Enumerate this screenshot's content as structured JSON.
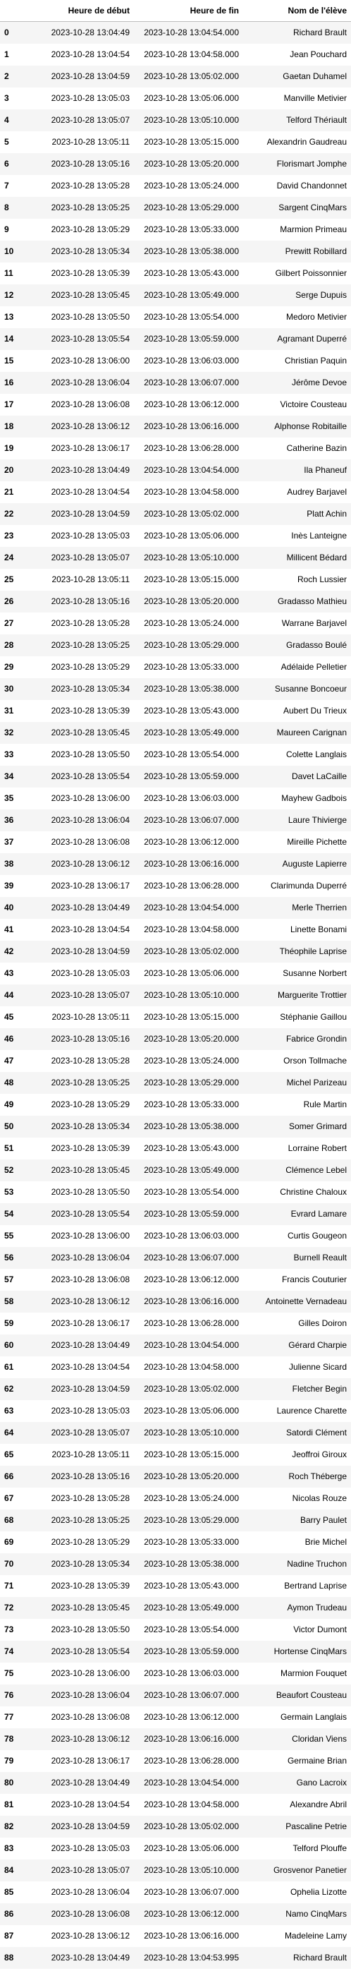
{
  "table": {
    "index_header": "",
    "columns": [
      "Heure de début",
      "Heure de fin",
      "Nom de l'élève"
    ],
    "rows": [
      [
        "0",
        "2023-10-28 13:04:49",
        "2023-10-28 13:04:54.000",
        "Richard Brault"
      ],
      [
        "1",
        "2023-10-28 13:04:54",
        "2023-10-28 13:04:58.000",
        "Jean Pouchard"
      ],
      [
        "2",
        "2023-10-28 13:04:59",
        "2023-10-28 13:05:02.000",
        "Gaetan Duhamel"
      ],
      [
        "3",
        "2023-10-28 13:05:03",
        "2023-10-28 13:05:06.000",
        "Manville Metivier"
      ],
      [
        "4",
        "2023-10-28 13:05:07",
        "2023-10-28 13:05:10.000",
        "Telford Thériault"
      ],
      [
        "5",
        "2023-10-28 13:05:11",
        "2023-10-28 13:05:15.000",
        "Alexandrin Gaudreau"
      ],
      [
        "6",
        "2023-10-28 13:05:16",
        "2023-10-28 13:05:20.000",
        "Florismart Jomphe"
      ],
      [
        "7",
        "2023-10-28 13:05:28",
        "2023-10-28 13:05:24.000",
        "David Chandonnet"
      ],
      [
        "8",
        "2023-10-28 13:05:25",
        "2023-10-28 13:05:29.000",
        "Sargent CinqMars"
      ],
      [
        "9",
        "2023-10-28 13:05:29",
        "2023-10-28 13:05:33.000",
        "Marmion Primeau"
      ],
      [
        "10",
        "2023-10-28 13:05:34",
        "2023-10-28 13:05:38.000",
        "Prewitt Robillard"
      ],
      [
        "11",
        "2023-10-28 13:05:39",
        "2023-10-28 13:05:43.000",
        "Gilbert Poissonnier"
      ],
      [
        "12",
        "2023-10-28 13:05:45",
        "2023-10-28 13:05:49.000",
        "Serge Dupuis"
      ],
      [
        "13",
        "2023-10-28 13:05:50",
        "2023-10-28 13:05:54.000",
        "Medoro Metivier"
      ],
      [
        "14",
        "2023-10-28 13:05:54",
        "2023-10-28 13:05:59.000",
        "Agramant Duperré"
      ],
      [
        "15",
        "2023-10-28 13:06:00",
        "2023-10-28 13:06:03.000",
        "Christian Paquin"
      ],
      [
        "16",
        "2023-10-28 13:06:04",
        "2023-10-28 13:06:07.000",
        "Jérôme Devoe"
      ],
      [
        "17",
        "2023-10-28 13:06:08",
        "2023-10-28 13:06:12.000",
        "Victoire Cousteau"
      ],
      [
        "18",
        "2023-10-28 13:06:12",
        "2023-10-28 13:06:16.000",
        "Alphonse Robitaille"
      ],
      [
        "19",
        "2023-10-28 13:06:17",
        "2023-10-28 13:06:28.000",
        "Catherine Bazin"
      ],
      [
        "20",
        "2023-10-28 13:04:49",
        "2023-10-28 13:04:54.000",
        "Ila Phaneuf"
      ],
      [
        "21",
        "2023-10-28 13:04:54",
        "2023-10-28 13:04:58.000",
        "Audrey Barjavel"
      ],
      [
        "22",
        "2023-10-28 13:04:59",
        "2023-10-28 13:05:02.000",
        "Platt Achin"
      ],
      [
        "23",
        "2023-10-28 13:05:03",
        "2023-10-28 13:05:06.000",
        "Inès Lanteigne"
      ],
      [
        "24",
        "2023-10-28 13:05:07",
        "2023-10-28 13:05:10.000",
        "Millicent Bédard"
      ],
      [
        "25",
        "2023-10-28 13:05:11",
        "2023-10-28 13:05:15.000",
        "Roch Lussier"
      ],
      [
        "26",
        "2023-10-28 13:05:16",
        "2023-10-28 13:05:20.000",
        "Gradasso Mathieu"
      ],
      [
        "27",
        "2023-10-28 13:05:28",
        "2023-10-28 13:05:24.000",
        "Warrane Barjavel"
      ],
      [
        "28",
        "2023-10-28 13:05:25",
        "2023-10-28 13:05:29.000",
        "Gradasso Boulé"
      ],
      [
        "29",
        "2023-10-28 13:05:29",
        "2023-10-28 13:05:33.000",
        "Adélaide Pelletier"
      ],
      [
        "30",
        "2023-10-28 13:05:34",
        "2023-10-28 13:05:38.000",
        "Susanne Boncoeur"
      ],
      [
        "31",
        "2023-10-28 13:05:39",
        "2023-10-28 13:05:43.000",
        "Aubert Du Trieux"
      ],
      [
        "32",
        "2023-10-28 13:05:45",
        "2023-10-28 13:05:49.000",
        "Maureen Carignan"
      ],
      [
        "33",
        "2023-10-28 13:05:50",
        "2023-10-28 13:05:54.000",
        "Colette Langlais"
      ],
      [
        "34",
        "2023-10-28 13:05:54",
        "2023-10-28 13:05:59.000",
        "Davet LaCaille"
      ],
      [
        "35",
        "2023-10-28 13:06:00",
        "2023-10-28 13:06:03.000",
        "Mayhew Gadbois"
      ],
      [
        "36",
        "2023-10-28 13:06:04",
        "2023-10-28 13:06:07.000",
        "Laure Thivierge"
      ],
      [
        "37",
        "2023-10-28 13:06:08",
        "2023-10-28 13:06:12.000",
        "Mireille Pichette"
      ],
      [
        "38",
        "2023-10-28 13:06:12",
        "2023-10-28 13:06:16.000",
        "Auguste Lapierre"
      ],
      [
        "39",
        "2023-10-28 13:06:17",
        "2023-10-28 13:06:28.000",
        "Clarimunda Duperré"
      ],
      [
        "40",
        "2023-10-28 13:04:49",
        "2023-10-28 13:04:54.000",
        "Merle Therrien"
      ],
      [
        "41",
        "2023-10-28 13:04:54",
        "2023-10-28 13:04:58.000",
        "Linette Bonami"
      ],
      [
        "42",
        "2023-10-28 13:04:59",
        "2023-10-28 13:05:02.000",
        "Théophile Laprise"
      ],
      [
        "43",
        "2023-10-28 13:05:03",
        "2023-10-28 13:05:06.000",
        "Susanne Norbert"
      ],
      [
        "44",
        "2023-10-28 13:05:07",
        "2023-10-28 13:05:10.000",
        "Marguerite Trottier"
      ],
      [
        "45",
        "2023-10-28 13:05:11",
        "2023-10-28 13:05:15.000",
        "Stéphanie Gaillou"
      ],
      [
        "46",
        "2023-10-28 13:05:16",
        "2023-10-28 13:05:20.000",
        "Fabrice Grondin"
      ],
      [
        "47",
        "2023-10-28 13:05:28",
        "2023-10-28 13:05:24.000",
        "Orson Tollmache"
      ],
      [
        "48",
        "2023-10-28 13:05:25",
        "2023-10-28 13:05:29.000",
        "Michel Parizeau"
      ],
      [
        "49",
        "2023-10-28 13:05:29",
        "2023-10-28 13:05:33.000",
        "Rule Martin"
      ],
      [
        "50",
        "2023-10-28 13:05:34",
        "2023-10-28 13:05:38.000",
        "Somer Grimard"
      ],
      [
        "51",
        "2023-10-28 13:05:39",
        "2023-10-28 13:05:43.000",
        "Lorraine Robert"
      ],
      [
        "52",
        "2023-10-28 13:05:45",
        "2023-10-28 13:05:49.000",
        "Clémence Lebel"
      ],
      [
        "53",
        "2023-10-28 13:05:50",
        "2023-10-28 13:05:54.000",
        "Christine Chaloux"
      ],
      [
        "54",
        "2023-10-28 13:05:54",
        "2023-10-28 13:05:59.000",
        "Evrard Lamare"
      ],
      [
        "55",
        "2023-10-28 13:06:00",
        "2023-10-28 13:06:03.000",
        "Curtis Gougeon"
      ],
      [
        "56",
        "2023-10-28 13:06:04",
        "2023-10-28 13:06:07.000",
        "Burnell Reault"
      ],
      [
        "57",
        "2023-10-28 13:06:08",
        "2023-10-28 13:06:12.000",
        "Francis Couturier"
      ],
      [
        "58",
        "2023-10-28 13:06:12",
        "2023-10-28 13:06:16.000",
        "Antoinette Vernadeau"
      ],
      [
        "59",
        "2023-10-28 13:06:17",
        "2023-10-28 13:06:28.000",
        "Gilles Doiron"
      ],
      [
        "60",
        "2023-10-28 13:04:49",
        "2023-10-28 13:04:54.000",
        "Gérard Charpie"
      ],
      [
        "61",
        "2023-10-28 13:04:54",
        "2023-10-28 13:04:58.000",
        "Julienne Sicard"
      ],
      [
        "62",
        "2023-10-28 13:04:59",
        "2023-10-28 13:05:02.000",
        "Fletcher Begin"
      ],
      [
        "63",
        "2023-10-28 13:05:03",
        "2023-10-28 13:05:06.000",
        "Laurence Charette"
      ],
      [
        "64",
        "2023-10-28 13:05:07",
        "2023-10-28 13:05:10.000",
        "Satordi Clément"
      ],
      [
        "65",
        "2023-10-28 13:05:11",
        "2023-10-28 13:05:15.000",
        "Jeoffroi Giroux"
      ],
      [
        "66",
        "2023-10-28 13:05:16",
        "2023-10-28 13:05:20.000",
        "Roch Théberge"
      ],
      [
        "67",
        "2023-10-28 13:05:28",
        "2023-10-28 13:05:24.000",
        "Nicolas Rouze"
      ],
      [
        "68",
        "2023-10-28 13:05:25",
        "2023-10-28 13:05:29.000",
        "Barry Paulet"
      ],
      [
        "69",
        "2023-10-28 13:05:29",
        "2023-10-28 13:05:33.000",
        "Brie Michel"
      ],
      [
        "70",
        "2023-10-28 13:05:34",
        "2023-10-28 13:05:38.000",
        "Nadine Truchon"
      ],
      [
        "71",
        "2023-10-28 13:05:39",
        "2023-10-28 13:05:43.000",
        "Bertrand Laprise"
      ],
      [
        "72",
        "2023-10-28 13:05:45",
        "2023-10-28 13:05:49.000",
        "Aymon Trudeau"
      ],
      [
        "73",
        "2023-10-28 13:05:50",
        "2023-10-28 13:05:54.000",
        "Victor Dumont"
      ],
      [
        "74",
        "2023-10-28 13:05:54",
        "2023-10-28 13:05:59.000",
        "Hortense CinqMars"
      ],
      [
        "75",
        "2023-10-28 13:06:00",
        "2023-10-28 13:06:03.000",
        "Marmion Fouquet"
      ],
      [
        "76",
        "2023-10-28 13:06:04",
        "2023-10-28 13:06:07.000",
        "Beaufort Cousteau"
      ],
      [
        "77",
        "2023-10-28 13:06:08",
        "2023-10-28 13:06:12.000",
        "Germain Langlais"
      ],
      [
        "78",
        "2023-10-28 13:06:12",
        "2023-10-28 13:06:16.000",
        "Cloridan Viens"
      ],
      [
        "79",
        "2023-10-28 13:06:17",
        "2023-10-28 13:06:28.000",
        "Germaine Brian"
      ],
      [
        "80",
        "2023-10-28 13:04:49",
        "2023-10-28 13:04:54.000",
        "Gano Lacroix"
      ],
      [
        "81",
        "2023-10-28 13:04:54",
        "2023-10-28 13:04:58.000",
        "Alexandre Abril"
      ],
      [
        "82",
        "2023-10-28 13:04:59",
        "2023-10-28 13:05:02.000",
        "Pascaline Petrie"
      ],
      [
        "83",
        "2023-10-28 13:05:03",
        "2023-10-28 13:05:06.000",
        "Telford Plouffe"
      ],
      [
        "84",
        "2023-10-28 13:05:07",
        "2023-10-28 13:05:10.000",
        "Grosvenor Panetier"
      ],
      [
        "85",
        "2023-10-28 13:06:04",
        "2023-10-28 13:06:07.000",
        "Ophelia Lizotte"
      ],
      [
        "86",
        "2023-10-28 13:06:08",
        "2023-10-28 13:06:12.000",
        "Namo CinqMars"
      ],
      [
        "87",
        "2023-10-28 13:06:12",
        "2023-10-28 13:06:16.000",
        "Madeleine Lamy"
      ],
      [
        "88",
        "2023-10-28 13:04:49",
        "2023-10-28 13:04:53.995",
        "Richard Brault"
      ]
    ]
  }
}
